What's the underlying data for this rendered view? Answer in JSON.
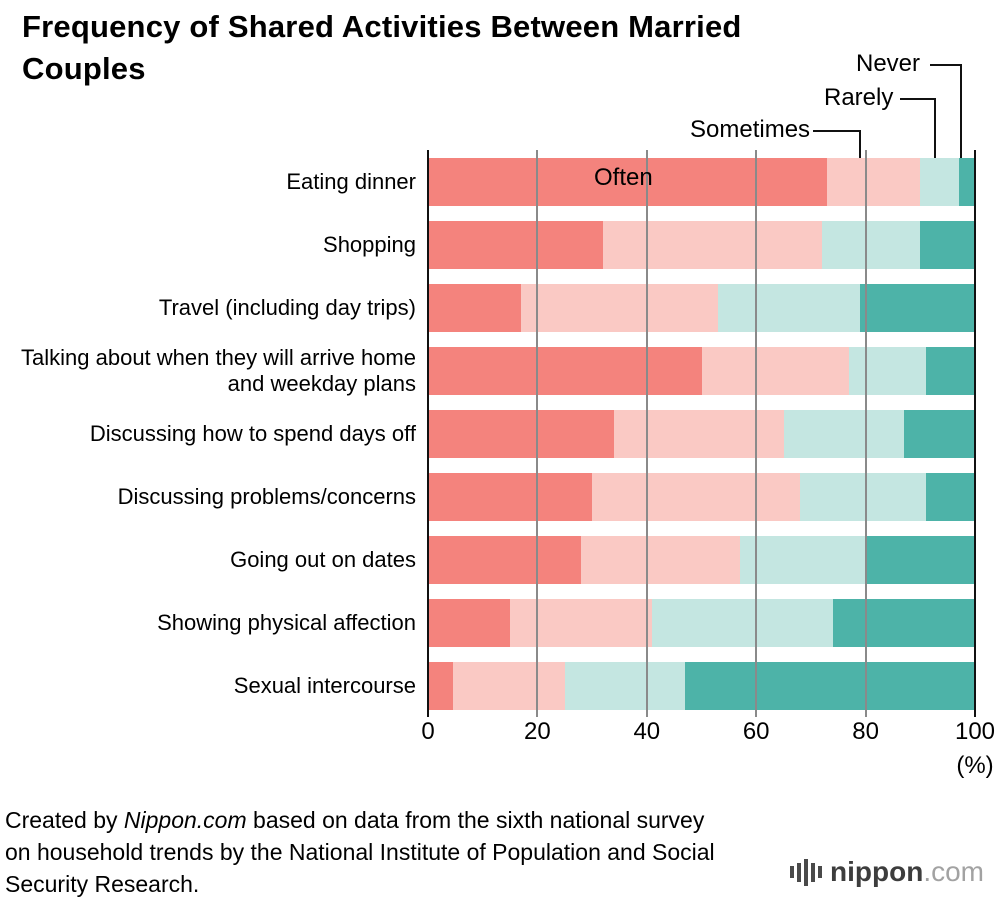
{
  "title": "Frequency of Shared Activities Between Married Couples",
  "chart_data": {
    "type": "bar",
    "orientation": "horizontal",
    "stacked": true,
    "unit": "%",
    "xlabel": "(%)",
    "xlim": [
      0,
      100
    ],
    "xticks": [
      0,
      20,
      40,
      60,
      80,
      100
    ],
    "grid": true,
    "legend_position": "annotations-top-right",
    "categories": [
      "Eating dinner",
      "Shopping",
      "Travel (including day trips)",
      "Talking about when they will arrive home and weekday plans",
      "Discussing how to spend days off",
      "Discussing problems/concerns",
      "Going out on dates",
      "Showing physical affection",
      "Sexual intercourse"
    ],
    "series": [
      {
        "name": "Often",
        "color": "#f4837d",
        "values": [
          73,
          32,
          17,
          50,
          34,
          30,
          28,
          15,
          4.5
        ]
      },
      {
        "name": "Sometimes",
        "color": "#fac9c4",
        "values": [
          17,
          40,
          36,
          27,
          31,
          38,
          29,
          26,
          20.5
        ]
      },
      {
        "name": "Rarely",
        "color": "#c4e6e1",
        "values": [
          7,
          18,
          26,
          14,
          22,
          23,
          23,
          33,
          22
        ]
      },
      {
        "name": "Never",
        "color": "#4db3a8",
        "values": [
          3,
          10,
          21,
          9,
          13,
          9,
          20,
          26,
          53
        ]
      }
    ]
  },
  "footer": {
    "prefix": "Created by ",
    "brand": "Nippon.com",
    "suffix": " based on data from the sixth national survey on household trends by the National Institute of Population and Social Security Research."
  },
  "logo": {
    "bold": "nippon",
    "light": ".com"
  },
  "colors": {
    "gridline": "#8a8a8a",
    "axis": "#111111",
    "background": "#ffffff"
  }
}
